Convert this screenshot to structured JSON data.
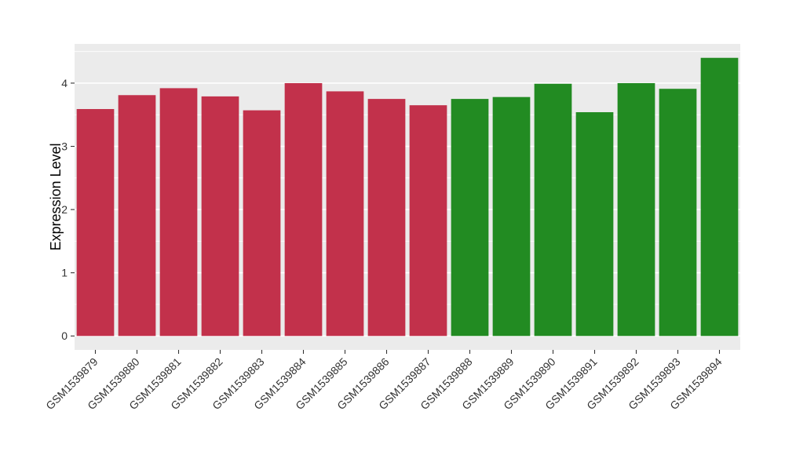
{
  "chart_data": {
    "type": "bar",
    "title": "",
    "xlabel": "",
    "ylabel": "Expression Level",
    "bars": [
      {
        "label": "GSM1539879",
        "value": 3.59,
        "group": "red",
        "color": "#C2314B"
      },
      {
        "label": "GSM1539880",
        "value": 3.81,
        "group": "red",
        "color": "#C2314B"
      },
      {
        "label": "GSM1539881",
        "value": 3.92,
        "group": "red",
        "color": "#C2314B"
      },
      {
        "label": "GSM1539882",
        "value": 3.79,
        "group": "red",
        "color": "#C2314B"
      },
      {
        "label": "GSM1539883",
        "value": 3.57,
        "group": "red",
        "color": "#C2314B"
      },
      {
        "label": "GSM1539884",
        "value": 4.0,
        "group": "red",
        "color": "#C2314B"
      },
      {
        "label": "GSM1539885",
        "value": 3.87,
        "group": "red",
        "color": "#C2314B"
      },
      {
        "label": "GSM1539886",
        "value": 3.75,
        "group": "red",
        "color": "#C2314B"
      },
      {
        "label": "GSM1539887",
        "value": 3.65,
        "group": "red",
        "color": "#C2314B"
      },
      {
        "label": "GSM1539888",
        "value": 3.75,
        "group": "green",
        "color": "#228B22"
      },
      {
        "label": "GSM1539889",
        "value": 3.78,
        "group": "green",
        "color": "#228B22"
      },
      {
        "label": "GSM1539890",
        "value": 3.99,
        "group": "green",
        "color": "#228B22"
      },
      {
        "label": "GSM1539891",
        "value": 3.54,
        "group": "green",
        "color": "#228B22"
      },
      {
        "label": "GSM1539892",
        "value": 4.0,
        "group": "green",
        "color": "#228B22"
      },
      {
        "label": "GSM1539893",
        "value": 3.91,
        "group": "green",
        "color": "#228B22"
      },
      {
        "label": "GSM1539894",
        "value": 4.4,
        "group": "green",
        "color": "#228B22"
      }
    ],
    "yticks": [
      0,
      1,
      2,
      3,
      4
    ],
    "y_minor_ticks": [
      0.5,
      1.5,
      2.5,
      3.5,
      4.5
    ],
    "ylim": [
      -0.22,
      4.62
    ],
    "grid": true,
    "legend": "none",
    "x_label_rotation": -45,
    "style": {
      "panel_bg": "#EBEBEB",
      "grid_color": "#FFFFFF",
      "tick_color": "#333333",
      "tick_label_color": "#333333",
      "axis_title_color": "#000000",
      "background": "#FFFFFF"
    }
  }
}
